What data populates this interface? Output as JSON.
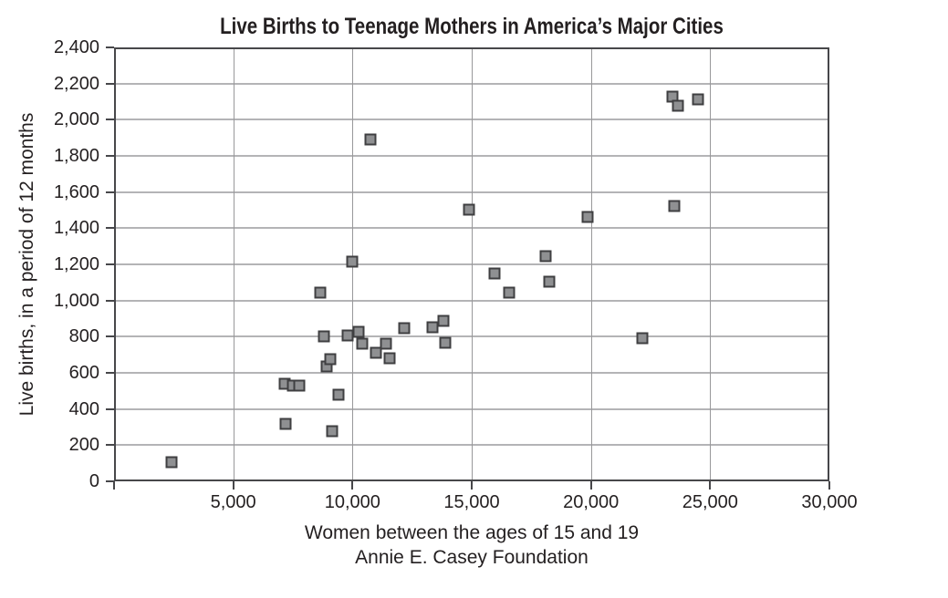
{
  "chart_data": {
    "type": "scatter",
    "title": "Live Births to Teenage Mothers in America’s Major Cities",
    "xlabel": "Women between the ages of 15 and 19",
    "xlabel_sub": "Annie E. Casey Foundation",
    "ylabel": "Live births, in a period of 12 months",
    "xlim": [
      0,
      30000
    ],
    "ylim": [
      0,
      2400
    ],
    "grid": true,
    "legend": "none",
    "marker": "square",
    "x_tick_values": [
      0,
      5000,
      10000,
      15000,
      20000,
      25000,
      30000
    ],
    "x_tick_labels": [
      "",
      "5,000",
      "10,000",
      "15,000",
      "20,000",
      "25,000",
      "30,000"
    ],
    "y_tick_values": [
      0,
      200,
      400,
      600,
      800,
      1000,
      1200,
      1400,
      1600,
      1800,
      2000,
      2200,
      2400
    ],
    "y_tick_labels": [
      "0",
      "200",
      "400",
      "600",
      "800",
      "1,000",
      "1,200",
      "1,400",
      "1,600",
      "1,800",
      "2,000",
      "2,200",
      "2,400"
    ],
    "points": [
      [
        2400,
        105
      ],
      [
        7150,
        540
      ],
      [
        7200,
        320
      ],
      [
        7500,
        530
      ],
      [
        7750,
        530
      ],
      [
        8650,
        1045
      ],
      [
        8800,
        800
      ],
      [
        8900,
        635
      ],
      [
        9050,
        675
      ],
      [
        9150,
        275
      ],
      [
        9400,
        480
      ],
      [
        9800,
        805
      ],
      [
        10000,
        1215
      ],
      [
        10250,
        825
      ],
      [
        10400,
        760
      ],
      [
        10750,
        1890
      ],
      [
        11000,
        710
      ],
      [
        11400,
        760
      ],
      [
        11550,
        680
      ],
      [
        12150,
        845
      ],
      [
        13350,
        850
      ],
      [
        13800,
        885
      ],
      [
        13900,
        765
      ],
      [
        14900,
        1505
      ],
      [
        15950,
        1150
      ],
      [
        16550,
        1045
      ],
      [
        18100,
        1245
      ],
      [
        18250,
        1105
      ],
      [
        19850,
        1460
      ],
      [
        22150,
        790
      ],
      [
        23400,
        2130
      ],
      [
        23500,
        1525
      ],
      [
        23650,
        2075
      ],
      [
        24500,
        2115
      ]
    ]
  },
  "colors": {
    "background": "#ffffff",
    "text": "#231f20",
    "axis_border": "#47474a",
    "gridline_horizontal": "#b4b4b6",
    "gridline_vertical": "#98989a",
    "marker_fill": "#8f9092",
    "marker_border": "#3f3f41"
  }
}
